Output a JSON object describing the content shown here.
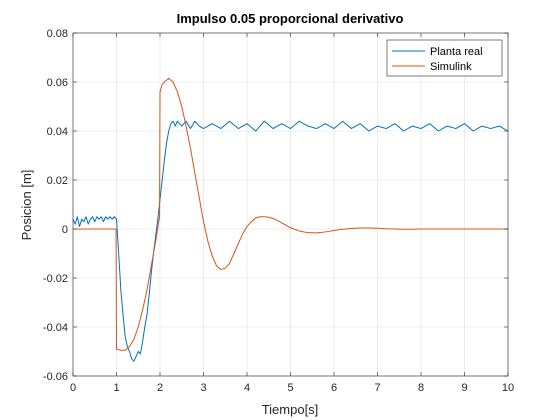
{
  "chart_data": {
    "type": "line",
    "title": "Impulso 0.05 proporcional derivativo",
    "xlabel": "Tiempo[s]",
    "ylabel": "Posicion [m]",
    "xlim": [
      0,
      10
    ],
    "ylim": [
      -0.06,
      0.08
    ],
    "xticks": [
      0,
      1,
      2,
      3,
      4,
      5,
      6,
      7,
      8,
      9,
      10
    ],
    "xtick_labels": [
      "0",
      "1",
      "2",
      "3",
      "4",
      "5",
      "6",
      "7",
      "8",
      "9",
      "10"
    ],
    "yticks": [
      -0.06,
      -0.04,
      -0.02,
      0,
      0.02,
      0.04,
      0.06,
      0.08
    ],
    "ytick_labels": [
      "-0.06",
      "-0.04",
      "-0.02",
      "0",
      "0.02",
      "0.04",
      "0.06",
      "0.08"
    ],
    "grid": true,
    "legend_position": "top-right",
    "series": [
      {
        "name": "Planta real",
        "color": "#0072bd",
        "x": [
          0,
          0.05,
          0.1,
          0.15,
          0.2,
          0.25,
          0.3,
          0.35,
          0.4,
          0.45,
          0.5,
          0.55,
          0.6,
          0.65,
          0.7,
          0.75,
          0.8,
          0.85,
          0.9,
          0.95,
          1.0,
          1.05,
          1.1,
          1.15,
          1.2,
          1.25,
          1.3,
          1.35,
          1.4,
          1.45,
          1.5,
          1.55,
          1.6,
          1.65,
          1.7,
          1.75,
          1.8,
          1.85,
          1.9,
          1.95,
          2.0,
          2.05,
          2.1,
          2.15,
          2.2,
          2.25,
          2.3,
          2.35,
          2.4,
          2.5,
          2.6,
          2.7,
          2.8,
          2.9,
          3.0,
          3.2,
          3.4,
          3.6,
          3.8,
          4.0,
          4.2,
          4.4,
          4.6,
          4.8,
          5.0,
          5.2,
          5.4,
          5.6,
          5.8,
          6.0,
          6.2,
          6.4,
          6.6,
          6.8,
          7.0,
          7.2,
          7.4,
          7.6,
          7.8,
          8.0,
          8.2,
          8.4,
          8.6,
          8.8,
          9.0,
          9.2,
          9.4,
          9.6,
          9.8,
          10.0
        ],
        "y": [
          0.004,
          0.002,
          0.005,
          0.001,
          0.004,
          0.003,
          0.005,
          0.002,
          0.004,
          0.005,
          0.003,
          0.005,
          0.004,
          0.005,
          0.003,
          0.005,
          0.004,
          0.005,
          0.004,
          0.005,
          0.004,
          -0.01,
          -0.025,
          -0.035,
          -0.044,
          -0.048,
          -0.05,
          -0.053,
          -0.054,
          -0.052,
          -0.05,
          -0.051,
          -0.046,
          -0.04,
          -0.035,
          -0.027,
          -0.018,
          -0.01,
          -0.003,
          0.004,
          0.012,
          0.02,
          0.028,
          0.035,
          0.04,
          0.043,
          0.044,
          0.042,
          0.044,
          0.042,
          0.044,
          0.041,
          0.044,
          0.042,
          0.041,
          0.043,
          0.041,
          0.044,
          0.041,
          0.043,
          0.04,
          0.044,
          0.041,
          0.043,
          0.041,
          0.044,
          0.042,
          0.041,
          0.043,
          0.041,
          0.044,
          0.041,
          0.043,
          0.04,
          0.042,
          0.041,
          0.043,
          0.04,
          0.042,
          0.041,
          0.043,
          0.04,
          0.042,
          0.041,
          0.043,
          0.04,
          0.042,
          0.041,
          0.042,
          0.04
        ]
      },
      {
        "name": "Simulink",
        "color": "#d95319",
        "x": [
          0,
          0.5,
          0.99,
          1.0,
          1.1,
          1.2,
          1.3,
          1.4,
          1.5,
          1.6,
          1.7,
          1.8,
          1.9,
          1.99,
          2.0,
          2.05,
          2.1,
          2.2,
          2.3,
          2.4,
          2.5,
          2.6,
          2.7,
          2.8,
          2.9,
          3.0,
          3.1,
          3.2,
          3.3,
          3.4,
          3.5,
          3.6,
          3.7,
          3.8,
          3.9,
          4.0,
          4.1,
          4.2,
          4.3,
          4.4,
          4.5,
          4.6,
          4.7,
          4.8,
          4.9,
          5.0,
          5.2,
          5.4,
          5.6,
          5.8,
          6.0,
          6.2,
          6.4,
          6.6,
          6.8,
          7.0,
          7.2,
          7.4,
          7.6,
          7.8,
          8.0,
          8.5,
          9.0,
          9.5,
          10.0
        ],
        "y": [
          0,
          0,
          0,
          -0.049,
          -0.0495,
          -0.0495,
          -0.048,
          -0.045,
          -0.04,
          -0.033,
          -0.025,
          -0.015,
          -0.005,
          0.005,
          0.056,
          0.059,
          0.06,
          0.0615,
          0.06,
          0.056,
          0.05,
          0.042,
          0.033,
          0.023,
          0.013,
          0.003,
          -0.005,
          -0.011,
          -0.015,
          -0.0165,
          -0.016,
          -0.014,
          -0.01,
          -0.006,
          -0.002,
          0.001,
          0.003,
          0.0045,
          0.005,
          0.005,
          0.0048,
          0.0043,
          0.0035,
          0.0025,
          0.0015,
          0.0005,
          -0.0008,
          -0.0015,
          -0.0016,
          -0.0012,
          -0.0006,
          -0.0001,
          0.0002,
          0.0004,
          0.0004,
          0.0003,
          0.0001,
          0,
          -0.0001,
          -0.0001,
          0,
          0,
          0,
          0,
          0
        ]
      }
    ]
  }
}
